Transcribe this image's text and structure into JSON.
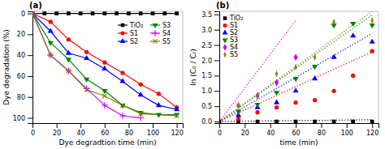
{
  "chart_data": [
    {
      "type": "line",
      "title": "(a)",
      "x_label": "Dye degradtion time (min)",
      "y_label": "Dye degradation (%)",
      "xlim": [
        0,
        125
      ],
      "ylim": [
        105,
        -2
      ],
      "xticks": [
        0,
        20,
        40,
        60,
        80,
        100,
        120
      ],
      "yticks": [
        0,
        20,
        40,
        60,
        80,
        100
      ],
      "legend": "upper right",
      "series": [
        {
          "name": "TiO₂",
          "color": "#000000",
          "marker": "square",
          "line_style": "solid",
          "x": [
            0,
            10,
            20,
            30,
            40,
            50,
            60,
            70,
            80,
            90,
            100,
            110,
            120
          ],
          "values": [
            0,
            0,
            0,
            0,
            0,
            0,
            0,
            0,
            0,
            0,
            0,
            0,
            0
          ]
        },
        {
          "name": "S1",
          "color": "#ff0000",
          "marker": "circle",
          "line_style": "solid",
          "x": [
            0,
            15,
            30,
            45,
            60,
            75,
            90,
            105,
            120
          ],
          "values": [
            0,
            8,
            25,
            37,
            47,
            57,
            68,
            77,
            90
          ]
        },
        {
          "name": "S2",
          "color": "#0000ff",
          "marker": "triangle-up",
          "line_style": "solid",
          "x": [
            0,
            15,
            30,
            45,
            60,
            75,
            90,
            105,
            120
          ],
          "values": [
            0,
            17,
            38,
            43,
            53,
            65,
            78,
            88,
            92
          ]
        },
        {
          "name": "S3",
          "color": "#008000",
          "marker": "triangle-down",
          "line_style": "solid",
          "x": [
            0,
            15,
            30,
            45,
            60,
            75,
            90,
            105,
            120
          ],
          "values": [
            0,
            28,
            44,
            63,
            74,
            88,
            95,
            97,
            97
          ]
        },
        {
          "name": "S4",
          "color": "#cc00ff",
          "marker": "plus",
          "line_style": "solid",
          "x": [
            0,
            15,
            30,
            45,
            60,
            75,
            90
          ],
          "values": [
            0,
            40,
            55,
            72,
            88,
            98,
            100
          ]
        },
        {
          "name": "S5",
          "color": "#808000",
          "marker": "x",
          "line_style": "solid",
          "x": [
            0,
            15,
            30,
            45,
            60,
            75,
            90,
            120
          ],
          "values": [
            0,
            40,
            55,
            73,
            79,
            88,
            96,
            98
          ]
        }
      ]
    },
    {
      "type": "scatter",
      "title": "(b)",
      "x_label": "time (min)",
      "y_label": "ln (C₀ / Cₜ)",
      "xlim": [
        0,
        125
      ],
      "ylim": [
        -0.05,
        3.6
      ],
      "xticks": [
        0,
        20,
        40,
        60,
        80,
        100,
        120
      ],
      "yticks": [
        {
          "value": 0,
          "label": "0.0"
        },
        0.5,
        {
          "value": 1,
          "label": "1.0"
        },
        1.5,
        {
          "value": 2,
          "label": "2.0"
        },
        2.5,
        {
          "value": 3,
          "label": "3.0"
        },
        3.5
      ],
      "legend": "upper left",
      "series": [
        {
          "name": "TiO₂",
          "color": "#000000",
          "marker": "square",
          "x": [
            0,
            15,
            30,
            45,
            60,
            75,
            90,
            105,
            120
          ],
          "values": [
            0,
            0,
            0,
            0,
            0,
            0,
            0,
            0,
            0
          ]
        },
        {
          "name": "S1",
          "color": "#ff0000",
          "marker": "circle",
          "x": [
            15,
            30,
            45,
            60,
            75,
            90,
            105,
            120
          ],
          "values": [
            0.09,
            0.3,
            0.46,
            0.62,
            0.7,
            1.0,
            1.5,
            2.3
          ]
        },
        {
          "name": "S2",
          "color": "#0000ff",
          "marker": "triangle-up",
          "x": [
            15,
            30,
            45,
            60,
            75,
            90,
            105,
            120
          ],
          "values": [
            0.2,
            0.46,
            0.62,
            1.0,
            1.4,
            2.1,
            2.8,
            2.6
          ]
        },
        {
          "name": "S3",
          "color": "#008000",
          "marker": "triangle-down",
          "x": [
            15,
            30,
            45,
            60,
            75,
            90,
            105,
            120
          ],
          "values": [
            0.33,
            0.56,
            0.95,
            1.4,
            1.8,
            3.15,
            3.2,
            3.15
          ]
        },
        {
          "name": "S4",
          "color": "#cc00ff",
          "marker": "diamond",
          "x": [
            15,
            30,
            45,
            60
          ],
          "values": [
            0.52,
            0.84,
            1.27,
            2.1
          ]
        },
        {
          "name": "S5",
          "color": "#808000",
          "marker": "thin-diamond",
          "x": [
            15,
            30,
            45,
            60,
            75,
            90,
            120
          ],
          "values": [
            0.52,
            0.84,
            1.56,
            1.78,
            2.1,
            3.25,
            3.3
          ]
        },
        {
          "type": "line",
          "line_style": "dotted",
          "color": "#000000",
          "x": [
            0,
            120
          ],
          "values": [
            0,
            0.06
          ]
        },
        {
          "type": "line",
          "line_style": "dotted",
          "color": "#ff0000",
          "x": [
            0,
            120
          ],
          "values": [
            0,
            2.28
          ]
        },
        {
          "type": "line",
          "line_style": "dotted",
          "color": "#0000ff",
          "x": [
            0,
            120
          ],
          "values": [
            0,
            2.88
          ]
        },
        {
          "type": "line",
          "line_style": "dotted",
          "color": "#008000",
          "x": [
            0,
            120
          ],
          "values": [
            0,
            3.48
          ]
        },
        {
          "type": "line",
          "line_style": "dotted",
          "color": "#cc00ff",
          "x": [
            0,
            60
          ],
          "values": [
            0,
            3.3
          ]
        },
        {
          "type": "line",
          "line_style": "dotted",
          "color": "#808000",
          "x": [
            0,
            120
          ],
          "values": [
            0,
            3.6
          ]
        }
      ]
    }
  ]
}
